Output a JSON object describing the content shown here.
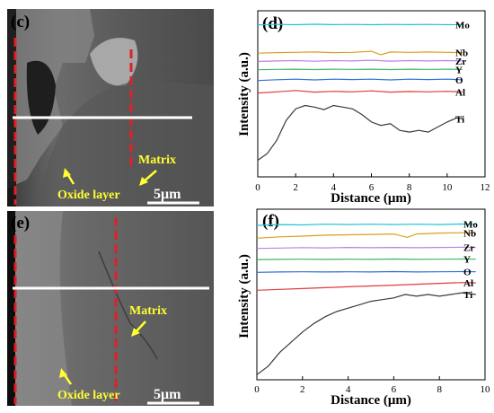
{
  "colors": {
    "Mo": "#22c4d4",
    "Nb": "#d9a020",
    "Zr": "#c080e6",
    "Y": "#3fb66a",
    "O": "#2f70d8",
    "Al": "#e23a3a",
    "Ti": "#3a3a3a",
    "dashed_line": "#e0202a",
    "scan_line": "#ffffff",
    "sem_label": "#ffff33",
    "panel_text": "#000000"
  },
  "sem_panels": [
    {
      "letter": "(c)",
      "labels": {
        "matrix": "Matrix",
        "oxide": "Oxide layer"
      },
      "scale_bar": "5μm"
    },
    {
      "letter": "(e)",
      "labels": {
        "matrix": "Matrix",
        "oxide": "Oxide layer"
      },
      "scale_bar": "5μm"
    }
  ],
  "chart_data": [
    {
      "panel": "(d)",
      "type": "line",
      "xlabel": "Distance (μm)",
      "ylabel": "Intensity (a.u.)",
      "xlim": [
        0,
        12
      ],
      "xticks": [
        0,
        2,
        4,
        6,
        8,
        10,
        12
      ],
      "ylim": [
        0,
        1
      ],
      "y_ticks_shown": false,
      "series": [
        {
          "name": "Mo",
          "x": [
            0,
            1,
            2,
            3,
            4,
            5,
            6,
            7,
            8,
            9,
            10,
            10.8
          ],
          "y": [
            0.915,
            0.918,
            0.916,
            0.919,
            0.917,
            0.918,
            0.916,
            0.918,
            0.917,
            0.918,
            0.916,
            0.917
          ]
        },
        {
          "name": "Nb",
          "x": [
            0,
            1,
            2,
            3,
            4,
            5,
            6,
            6.5,
            7,
            8,
            9,
            10,
            10.8
          ],
          "y": [
            0.745,
            0.748,
            0.75,
            0.752,
            0.748,
            0.75,
            0.756,
            0.735,
            0.752,
            0.75,
            0.752,
            0.75,
            0.748
          ]
        },
        {
          "name": "Zr",
          "x": [
            0,
            1,
            2,
            3,
            4,
            5,
            6,
            7,
            8,
            9,
            10,
            10.8
          ],
          "y": [
            0.695,
            0.698,
            0.7,
            0.696,
            0.7,
            0.698,
            0.702,
            0.697,
            0.7,
            0.698,
            0.7,
            0.698
          ]
        },
        {
          "name": "Y",
          "x": [
            0,
            1,
            2,
            3,
            4,
            5,
            6,
            7,
            8,
            9,
            10,
            10.8
          ],
          "y": [
            0.645,
            0.647,
            0.648,
            0.646,
            0.648,
            0.647,
            0.648,
            0.646,
            0.648,
            0.647,
            0.648,
            0.647
          ]
        },
        {
          "name": "O",
          "x": [
            0,
            1,
            2,
            3,
            4,
            5,
            6,
            7,
            8,
            9,
            10,
            10.8
          ],
          "y": [
            0.58,
            0.585,
            0.588,
            0.584,
            0.588,
            0.586,
            0.588,
            0.584,
            0.588,
            0.586,
            0.588,
            0.585
          ]
        },
        {
          "name": "Al",
          "x": [
            0,
            1,
            2,
            3,
            4,
            5,
            6,
            7,
            8,
            9,
            10,
            10.8
          ],
          "y": [
            0.505,
            0.512,
            0.52,
            0.51,
            0.515,
            0.512,
            0.518,
            0.51,
            0.514,
            0.512,
            0.515,
            0.512
          ]
        },
        {
          "name": "Ti",
          "x": [
            0,
            0.5,
            1,
            1.5,
            2,
            2.5,
            3,
            3.5,
            4,
            4.5,
            5,
            5.5,
            6,
            6.5,
            7,
            7.5,
            8,
            8.5,
            9,
            9.5,
            10,
            10.5,
            10.8
          ],
          "y": [
            0.1,
            0.14,
            0.22,
            0.34,
            0.41,
            0.43,
            0.42,
            0.405,
            0.43,
            0.42,
            0.41,
            0.375,
            0.33,
            0.31,
            0.32,
            0.28,
            0.27,
            0.28,
            0.27,
            0.3,
            0.33,
            0.355,
            0.35
          ]
        }
      ]
    },
    {
      "panel": "(f)",
      "type": "line",
      "xlabel": "Distance (μm)",
      "ylabel": "Intensity (a.u.)",
      "xlim": [
        0,
        10
      ],
      "xticks": [
        0,
        2,
        4,
        6,
        8,
        10
      ],
      "ylim": [
        0,
        1
      ],
      "y_ticks_shown": false,
      "series": [
        {
          "name": "Mo",
          "x": [
            0,
            1,
            2,
            3,
            4,
            5,
            6,
            7,
            8,
            9,
            9.6
          ],
          "y": [
            0.905,
            0.91,
            0.908,
            0.912,
            0.91,
            0.912,
            0.91,
            0.912,
            0.91,
            0.913,
            0.912
          ]
        },
        {
          "name": "Nb",
          "x": [
            0,
            1,
            2,
            3,
            4,
            5,
            6,
            6.6,
            7,
            8,
            9,
            9.6
          ],
          "y": [
            0.83,
            0.838,
            0.842,
            0.848,
            0.85,
            0.852,
            0.855,
            0.835,
            0.855,
            0.86,
            0.862,
            0.86
          ]
        },
        {
          "name": "Zr",
          "x": [
            0,
            1,
            2,
            3,
            4,
            5,
            6,
            7,
            8,
            9,
            9.6
          ],
          "y": [
            0.77,
            0.772,
            0.775,
            0.773,
            0.776,
            0.774,
            0.776,
            0.774,
            0.776,
            0.777,
            0.776
          ]
        },
        {
          "name": "Y",
          "x": [
            0,
            1,
            2,
            3,
            4,
            5,
            6,
            7,
            8,
            9,
            9.6
          ],
          "y": [
            0.705,
            0.706,
            0.707,
            0.706,
            0.707,
            0.706,
            0.708,
            0.706,
            0.707,
            0.708,
            0.707
          ]
        },
        {
          "name": "O",
          "x": [
            0,
            1,
            2,
            3,
            4,
            5,
            6,
            7,
            8,
            9,
            9.6
          ],
          "y": [
            0.63,
            0.632,
            0.633,
            0.632,
            0.633,
            0.632,
            0.634,
            0.632,
            0.633,
            0.634,
            0.633
          ]
        },
        {
          "name": "Al",
          "x": [
            0,
            1,
            2,
            3,
            4,
            5,
            6,
            7,
            8,
            9,
            9.6
          ],
          "y": [
            0.525,
            0.53,
            0.535,
            0.54,
            0.545,
            0.55,
            0.555,
            0.56,
            0.565,
            0.57,
            0.568
          ]
        },
        {
          "name": "Ti",
          "x": [
            0,
            0.5,
            1,
            1.5,
            2,
            2.5,
            3,
            3.5,
            4,
            4.5,
            5,
            5.5,
            6,
            6.5,
            7,
            7.5,
            8,
            8.5,
            9,
            9.6
          ],
          "y": [
            0.03,
            0.08,
            0.16,
            0.22,
            0.28,
            0.33,
            0.37,
            0.4,
            0.42,
            0.44,
            0.46,
            0.47,
            0.48,
            0.5,
            0.49,
            0.5,
            0.49,
            0.5,
            0.51,
            0.5
          ]
        }
      ]
    }
  ]
}
